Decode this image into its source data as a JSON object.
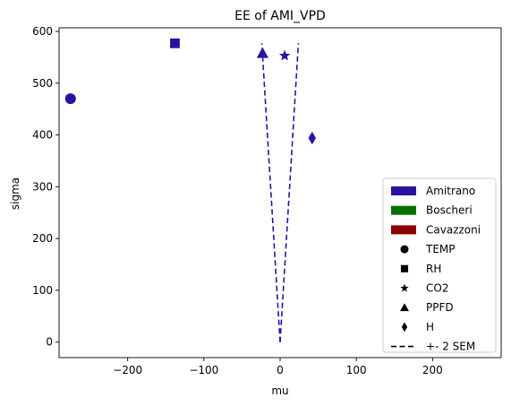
{
  "chart_data": {
    "type": "scatter",
    "title": "EE of AMI_VPD",
    "xlabel": "mu",
    "ylabel": "sigma",
    "xlim": [
      -290,
      290
    ],
    "ylim": [
      -30,
      607
    ],
    "xticks": [
      -200,
      -100,
      0,
      100,
      200
    ],
    "yticks": [
      0,
      100,
      200,
      300,
      400,
      500,
      600
    ],
    "grid": false,
    "legend_position": "lower-right",
    "colors": {
      "Amitrano": "#2a12a0",
      "Boscheri": "#007000",
      "Cavazzoni": "#8b0000"
    },
    "points": [
      {
        "label": "TEMP",
        "marker": "circle",
        "x": -275,
        "y": 470
      },
      {
        "label": "RH",
        "marker": "square",
        "x": -138,
        "y": 577
      },
      {
        "label": "CO2",
        "marker": "star",
        "x": 6,
        "y": 553
      },
      {
        "label": "PPFD",
        "marker": "triangle",
        "x": -23,
        "y": 558
      },
      {
        "label": "H",
        "marker": "diamond",
        "x": 42,
        "y": 394
      }
    ],
    "sem_lines": {
      "label": "+- 2 SEM",
      "left": [
        [
          0,
          0
        ],
        [
          -24,
          577
        ]
      ],
      "right": [
        [
          0,
          0
        ],
        [
          24,
          577
        ]
      ]
    },
    "legend": {
      "groups": [
        "Amitrano",
        "Boscheri",
        "Cavazzoni"
      ],
      "markers": [
        {
          "label": "TEMP",
          "marker": "circle"
        },
        {
          "label": "RH",
          "marker": "square"
        },
        {
          "label": "CO2",
          "marker": "star"
        },
        {
          "label": "PPFD",
          "marker": "triangle"
        },
        {
          "label": "H",
          "marker": "diamond"
        }
      ],
      "line_label": "+- 2 SEM"
    }
  }
}
